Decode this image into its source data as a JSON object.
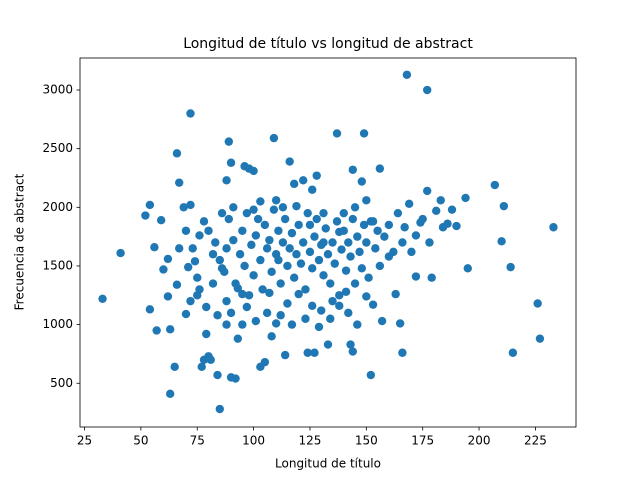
{
  "chart_data": {
    "type": "scatter",
    "title": "Longitud de título vs longitud de abstract",
    "x_label": "Longitud de título",
    "y_label": "Frecuencia de abstract",
    "color": "#1f77b4",
    "xlim": [
      23,
      243
    ],
    "ylim": [
      127,
      3273
    ],
    "xticks": [
      25,
      50,
      75,
      100,
      125,
      150,
      175,
      200,
      225
    ],
    "yticks": [
      500,
      1000,
      1500,
      2000,
      2500,
      3000
    ],
    "x": [
      33,
      41,
      52,
      54,
      54,
      56,
      57,
      59,
      60,
      62,
      63,
      62,
      63,
      65,
      66,
      67,
      67,
      66,
      69,
      70,
      71,
      72,
      72,
      74,
      75,
      76,
      77,
      78,
      79,
      80,
      81,
      84,
      85,
      86,
      88,
      89,
      90,
      90,
      91,
      92,
      93,
      95,
      96,
      98,
      100,
      101,
      103,
      105,
      107,
      109,
      110,
      111,
      114,
      116,
      118,
      122,
      124,
      126,
      127,
      128,
      129,
      131,
      133,
      135,
      137,
      138,
      142,
      143,
      144,
      144,
      148,
      149,
      150,
      152,
      153,
      155,
      156,
      157,
      160,
      163,
      165,
      166,
      167,
      168,
      169,
      172,
      174,
      177,
      177,
      179,
      181,
      183,
      184,
      186,
      188,
      190,
      194,
      195,
      207,
      210,
      211,
      214,
      215,
      226,
      227,
      233,
      75,
      78,
      80,
      82,
      83,
      85,
      87,
      88,
      89,
      91,
      92,
      94,
      95,
      96,
      97,
      98,
      99,
      100,
      101,
      102,
      103,
      104,
      105,
      106,
      107,
      108,
      109,
      110,
      111,
      112,
      113,
      114,
      115,
      116,
      117,
      118,
      119,
      120,
      121,
      122,
      123,
      124,
      125,
      126,
      127,
      128,
      129,
      130,
      131,
      132,
      133,
      134,
      135,
      136,
      137,
      138,
      139,
      140,
      141,
      142,
      143,
      144,
      145,
      146,
      147,
      148,
      149,
      150,
      151,
      152,
      154,
      156,
      158,
      160,
      162,
      164,
      166,
      170,
      172,
      175,
      178,
      70,
      72,
      73,
      76,
      79,
      82,
      84,
      86,
      88,
      90,
      93,
      97,
      100,
      103,
      106,
      108,
      112,
      115,
      117,
      120,
      123,
      126,
      130,
      134,
      138,
      141,
      146,
      88,
      95,
      110,
      113,
      119,
      125,
      131,
      140,
      145,
      150,
      153
    ],
    "values": [
      1220,
      1610,
      1930,
      2020,
      1130,
      1660,
      950,
      1890,
      1470,
      1240,
      960,
      1560,
      410,
      640,
      2460,
      2210,
      1650,
      1340,
      2000,
      1090,
      1490,
      2800,
      2020,
      1540,
      1250,
      1760,
      640,
      700,
      920,
      730,
      700,
      570,
      280,
      1480,
      2230,
      2560,
      2380,
      550,
      2000,
      540,
      1310,
      1000,
      2350,
      2330,
      2310,
      1030,
      640,
      680,
      1270,
      2590,
      1010,
      1550,
      740,
      2390,
      2200,
      2230,
      760,
      2150,
      760,
      2270,
      980,
      1950,
      830,
      1200,
      2630,
      1790,
      1100,
      830,
      770,
      2320,
      2220,
      2630,
      1240,
      570,
      1170,
      1800,
      2330,
      1030,
      1580,
      1260,
      1010,
      760,
      1830,
      3130,
      2030,
      1410,
      1870,
      3000,
      2140,
      1400,
      1970,
      2060,
      1830,
      1860,
      1980,
      1840,
      2080,
      1480,
      2190,
      1710,
      2010,
      1490,
      760,
      1180,
      880,
      1830,
      1400,
      1880,
      1800,
      1600,
      1700,
      1550,
      1450,
      1650,
      1900,
      1720,
      1350,
      1600,
      1800,
      1500,
      1950,
      1250,
      1680,
      1420,
      1760,
      1900,
      1550,
      1300,
      1850,
      1650,
      1720,
      1450,
      1980,
      1600,
      1800,
      1350,
      1700,
      1900,
      1500,
      1650,
      1780,
      1400,
      1600,
      1850,
      1520,
      1700,
      1300,
      1950,
      1620,
      1480,
      1750,
      1900,
      1550,
      1680,
      1420,
      1820,
      1600,
      1350,
      1700,
      1520,
      1880,
      1250,
      1640,
      1800,
      1460,
      1700,
      1580,
      1900,
      1350,
      1750,
      1620,
      1480,
      1850,
      1700,
      1400,
      1880,
      1650,
      1500,
      1750,
      1850,
      1620,
      1950,
      1700,
      1620,
      1760,
      1900,
      1700,
      1800,
      1200,
      1650,
      1300,
      1150,
      1350,
      1080,
      1950,
      1200,
      1100,
      880,
      1150,
      1980,
      2050,
      1100,
      900,
      1080,
      1180,
      1000,
      1260,
      1050,
      1160,
      1120,
      1050,
      1160,
      1280,
      1000,
      1000,
      1260,
      2060,
      2000,
      2010,
      1850,
      1700,
      1950,
      2000,
      2060,
      1880
    ]
  }
}
